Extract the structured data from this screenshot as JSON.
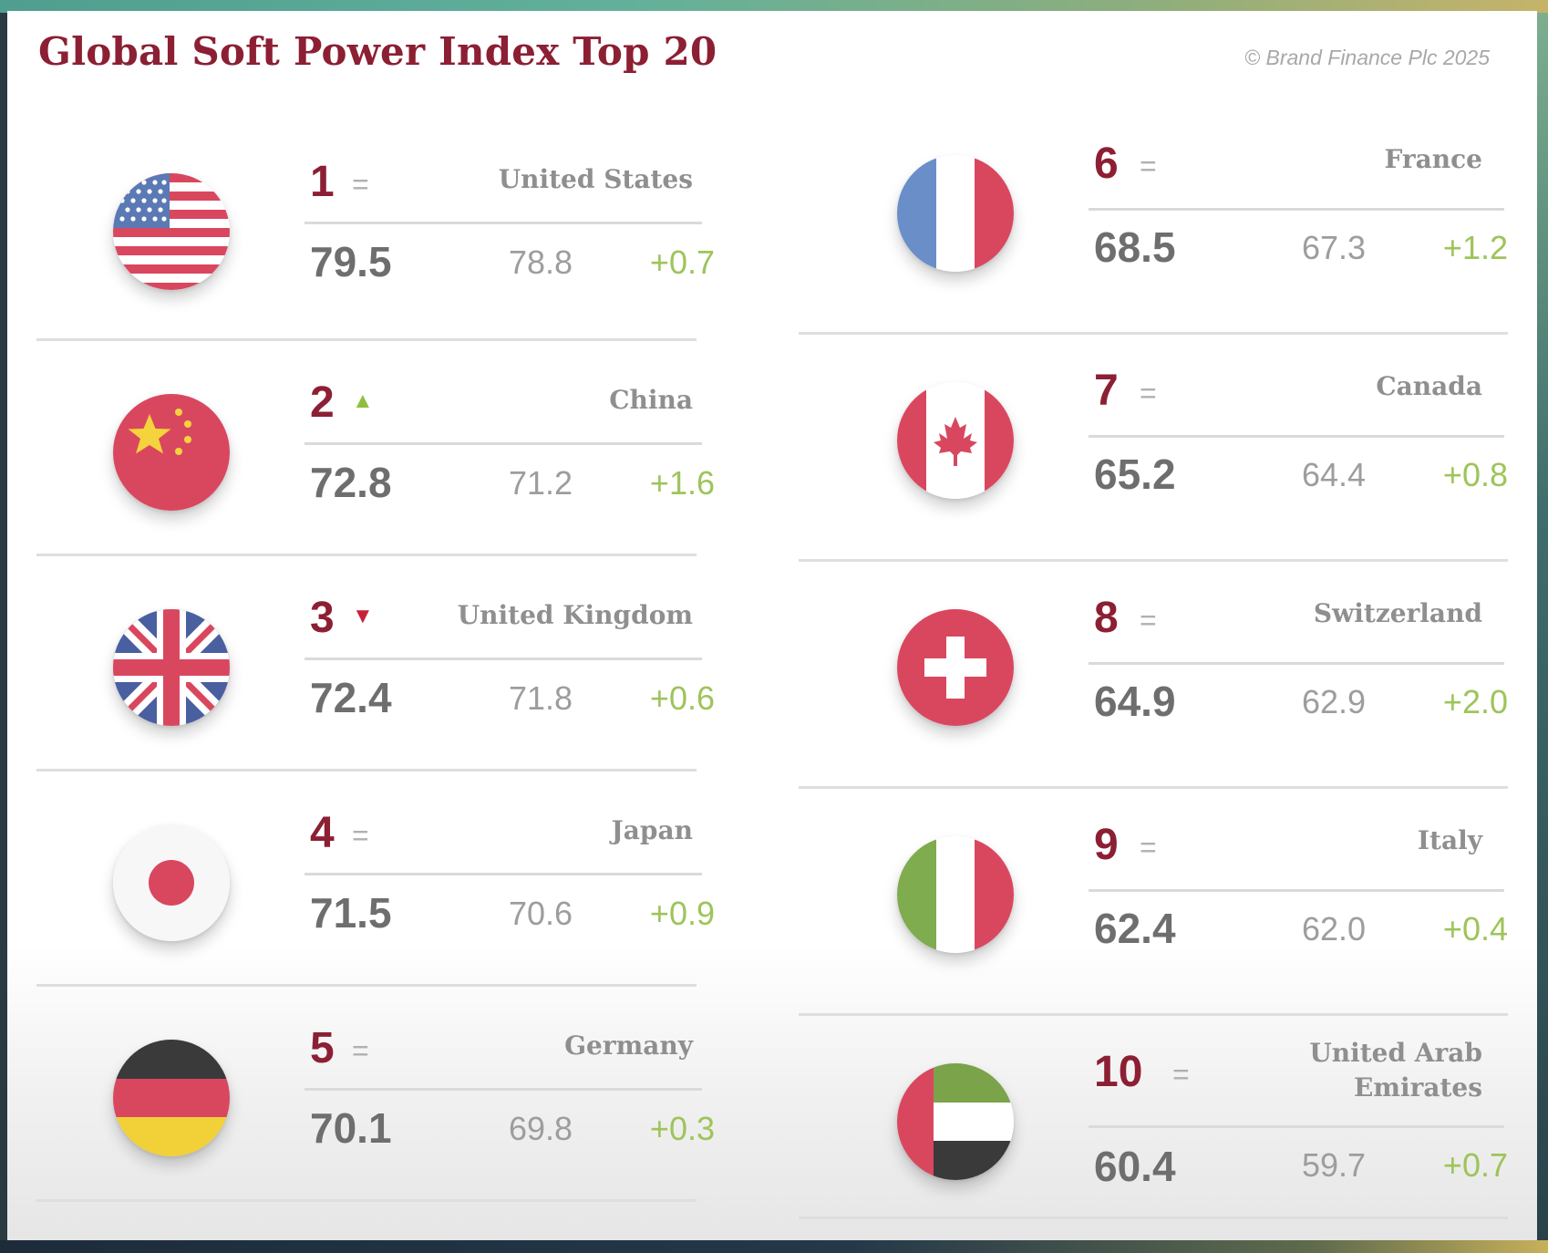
{
  "header": {
    "title": "Global Soft Power Index Top 20",
    "copyright": "© Brand Finance Plc 2025"
  },
  "trend_symbols": {
    "same": "=",
    "up": "▲",
    "down": "▼"
  },
  "colors": {
    "accent": "#8c1f33",
    "positive_change": "#9ec45a",
    "up_arrow": "#8fbe3f",
    "down_arrow": "#c8203a"
  },
  "rankings": [
    {
      "rank": "1",
      "trend": "same",
      "country": "United States",
      "score": "79.5",
      "previous": "78.8",
      "change": "+0.7",
      "flag_icon": "us-flag-icon"
    },
    {
      "rank": "2",
      "trend": "up",
      "country": "China",
      "score": "72.8",
      "previous": "71.2",
      "change": "+1.6",
      "flag_icon": "china-flag-icon"
    },
    {
      "rank": "3",
      "trend": "down",
      "country": "United Kingdom",
      "score": "72.4",
      "previous": "71.8",
      "change": "+0.6",
      "flag_icon": "uk-flag-icon"
    },
    {
      "rank": "4",
      "trend": "same",
      "country": "Japan",
      "score": "71.5",
      "previous": "70.6",
      "change": "+0.9",
      "flag_icon": "japan-flag-icon"
    },
    {
      "rank": "5",
      "trend": "same",
      "country": "Germany",
      "score": "70.1",
      "previous": "69.8",
      "change": "+0.3",
      "flag_icon": "germany-flag-icon"
    },
    {
      "rank": "6",
      "trend": "same",
      "country": "France",
      "score": "68.5",
      "previous": "67.3",
      "change": "+1.2",
      "flag_icon": "france-flag-icon"
    },
    {
      "rank": "7",
      "trend": "same",
      "country": "Canada",
      "score": "65.2",
      "previous": "64.4",
      "change": "+0.8",
      "flag_icon": "canada-flag-icon"
    },
    {
      "rank": "8",
      "trend": "same",
      "country": "Switzerland",
      "score": "64.9",
      "previous": "62.9",
      "change": "+2.0",
      "flag_icon": "switzerland-flag-icon"
    },
    {
      "rank": "9",
      "trend": "same",
      "country": "Italy",
      "score": "62.4",
      "previous": "62.0",
      "change": "+0.4",
      "flag_icon": "italy-flag-icon"
    },
    {
      "rank": "10",
      "trend": "same",
      "country": "United Arab Emirates",
      "country_line1": "United Arab",
      "country_line2": "Emirates",
      "score": "60.4",
      "previous": "59.7",
      "change": "+0.7",
      "flag_icon": "uae-flag-icon"
    }
  ]
}
